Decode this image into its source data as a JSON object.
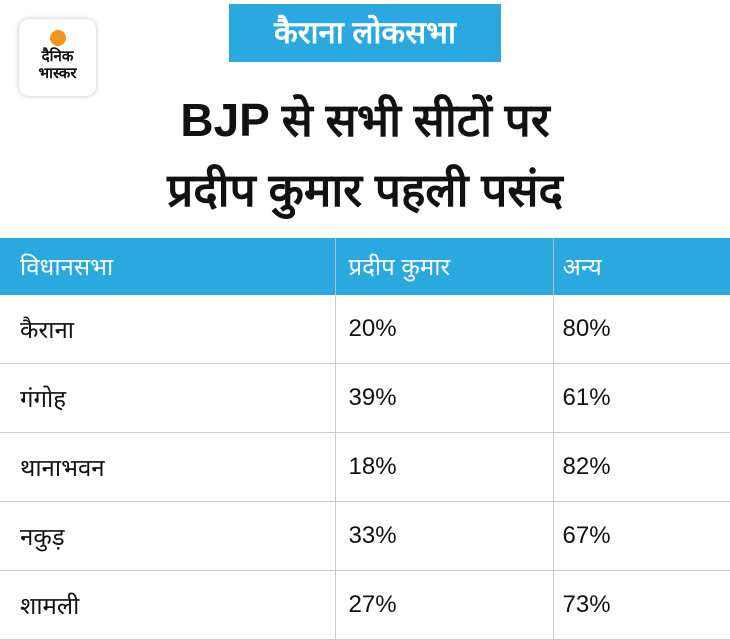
{
  "logo": {
    "lines": [
      "दैनिक",
      "भास्कर"
    ]
  },
  "header": {
    "badge": "कैराना लोकसभा",
    "title": [
      "BJP से सभी सीटों पर",
      "प्रदीप कुमार पहली पसंद"
    ]
  },
  "table": {
    "columns": [
      "विधानसभा",
      "प्रदीप कुमार",
      "अन्य"
    ],
    "rows": [
      [
        "कैराना",
        "20%",
        "80%"
      ],
      [
        "गंगोह",
        "39%",
        "61%"
      ],
      [
        "थानाभवन",
        "18%",
        "82%"
      ],
      [
        "नकुड़",
        "33%",
        "67%"
      ],
      [
        "शामली",
        "27%",
        "73%"
      ]
    ]
  }
}
